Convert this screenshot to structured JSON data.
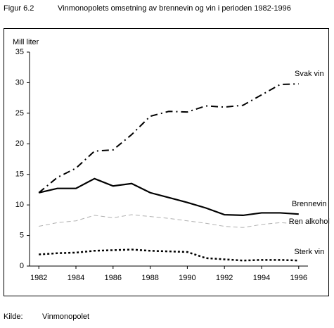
{
  "figure_label": "Figur 6.2",
  "source_label": "Kilde:",
  "source": "Vinmonopolet",
  "chart_data": {
    "type": "line",
    "title": "Vinmonopolets omsetning av brennevin og vin i perioden 1982-1996",
    "y_label": "Mill liter",
    "x": [
      1982,
      1983,
      1984,
      1985,
      1986,
      1987,
      1988,
      1989,
      1990,
      1991,
      1992,
      1993,
      1994,
      1995,
      1996
    ],
    "xlim": [
      1981.5,
      1996.5
    ],
    "xticks": [
      1982,
      1984,
      1986,
      1988,
      1990,
      1992,
      1994,
      1996
    ],
    "ylim": [
      0,
      35
    ],
    "yticks": [
      0,
      5,
      10,
      15,
      20,
      25,
      30,
      35
    ],
    "grid": false,
    "series": [
      {
        "name": "Svak vin",
        "color": "#000000",
        "line_style": "dashdot",
        "values": [
          12,
          14.5,
          16,
          18.8,
          19,
          21.5,
          24.5,
          25.3,
          25.2,
          26.2,
          26,
          26.3,
          28,
          29.7,
          29.8
        ]
      },
      {
        "name": "Brennevin",
        "color": "#000000",
        "line_style": "solid",
        "values": [
          12,
          12.7,
          12.7,
          14.3,
          13.1,
          13.5,
          12,
          11.2,
          10.4,
          9.5,
          8.4,
          8.3,
          8.7,
          8.7,
          8.5
        ]
      },
      {
        "name": "Ren alkohol",
        "color": "#b0b0b0",
        "line_style": "dashed",
        "values": [
          6.5,
          7.1,
          7.4,
          8.3,
          7.9,
          8.4,
          8.1,
          7.8,
          7.4,
          7.0,
          6.5,
          6.3,
          6.8,
          7.1,
          6.9
        ]
      },
      {
        "name": "Sterk vin",
        "color": "#000000",
        "line_style": "dotted",
        "values": [
          1.9,
          2.1,
          2.2,
          2.5,
          2.6,
          2.7,
          2.5,
          2.4,
          2.3,
          1.3,
          1.1,
          0.9,
          1.0,
          1.0,
          0.9
        ]
      }
    ]
  }
}
